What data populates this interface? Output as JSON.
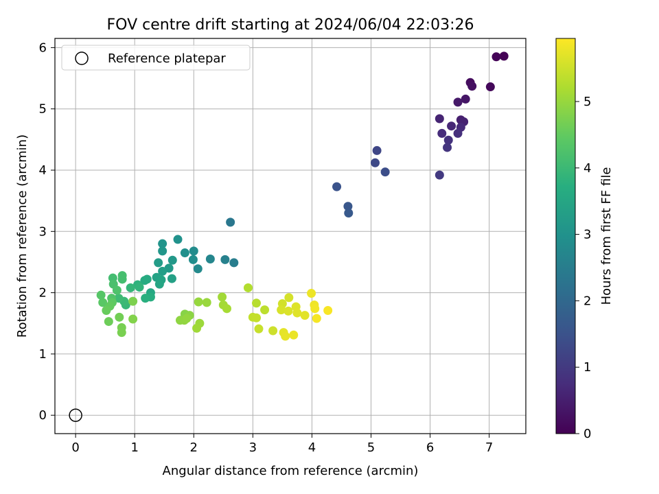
{
  "chart_data": {
    "type": "scatter",
    "title": "FOV centre drift starting at 2024/06/04 22:03:26",
    "xlabel": "Angular distance from reference (arcmin)",
    "ylabel": "Rotation from reference (arcmin)",
    "xlim": [
      -0.35,
      7.62
    ],
    "ylim": [
      -0.3,
      6.15
    ],
    "xticks": [
      "0",
      "1",
      "2",
      "3",
      "4",
      "5",
      "6",
      "7"
    ],
    "yticks": [
      "0",
      "1",
      "2",
      "3",
      "4",
      "5",
      "6"
    ],
    "grid": true,
    "legend": {
      "location": "upper-left",
      "entries": [
        "Reference platepar"
      ]
    },
    "reference_point": {
      "x": 0,
      "y": 0,
      "label": "Reference platepar"
    },
    "colorbar": {
      "label": "Hours from first FF file",
      "colormap": "viridis",
      "range": [
        0,
        5.95
      ],
      "ticks": [
        "0",
        "1",
        "2",
        "3",
        "4",
        "5"
      ]
    },
    "points": [
      {
        "x": 7.25,
        "y": 5.86,
        "h": 0.02
      },
      {
        "x": 7.12,
        "y": 5.85,
        "h": 0.05
      },
      {
        "x": 7.02,
        "y": 5.36,
        "h": 0.12
      },
      {
        "x": 6.68,
        "y": 5.43,
        "h": 0.2
      },
      {
        "x": 6.71,
        "y": 5.37,
        "h": 0.25
      },
      {
        "x": 6.6,
        "y": 5.16,
        "h": 0.35
      },
      {
        "x": 6.47,
        "y": 5.11,
        "h": 0.4
      },
      {
        "x": 6.52,
        "y": 4.82,
        "h": 0.5
      },
      {
        "x": 6.57,
        "y": 4.79,
        "h": 0.55
      },
      {
        "x": 6.16,
        "y": 4.84,
        "h": 0.6
      },
      {
        "x": 6.36,
        "y": 4.72,
        "h": 0.65
      },
      {
        "x": 6.52,
        "y": 4.7,
        "h": 0.7
      },
      {
        "x": 6.2,
        "y": 4.6,
        "h": 0.75
      },
      {
        "x": 6.47,
        "y": 4.6,
        "h": 0.8
      },
      {
        "x": 6.31,
        "y": 4.49,
        "h": 0.85
      },
      {
        "x": 6.29,
        "y": 4.37,
        "h": 0.9
      },
      {
        "x": 6.16,
        "y": 3.92,
        "h": 1.0
      },
      {
        "x": 5.1,
        "y": 4.32,
        "h": 1.25
      },
      {
        "x": 5.07,
        "y": 4.12,
        "h": 1.3
      },
      {
        "x": 5.24,
        "y": 3.97,
        "h": 1.4
      },
      {
        "x": 4.42,
        "y": 3.73,
        "h": 1.5
      },
      {
        "x": 4.61,
        "y": 3.41,
        "h": 1.6
      },
      {
        "x": 4.62,
        "y": 3.3,
        "h": 1.65
      },
      {
        "x": 2.62,
        "y": 3.15,
        "h": 2.35
      },
      {
        "x": 2.68,
        "y": 2.49,
        "h": 2.5
      },
      {
        "x": 2.53,
        "y": 2.54,
        "h": 2.6
      },
      {
        "x": 2.28,
        "y": 2.55,
        "h": 2.7
      },
      {
        "x": 2.07,
        "y": 2.39,
        "h": 2.8
      },
      {
        "x": 2.0,
        "y": 2.68,
        "h": 2.85
      },
      {
        "x": 1.99,
        "y": 2.54,
        "h": 2.9
      },
      {
        "x": 1.85,
        "y": 2.65,
        "h": 2.95
      },
      {
        "x": 1.73,
        "y": 2.87,
        "h": 3.0
      },
      {
        "x": 1.47,
        "y": 2.8,
        "h": 3.05
      },
      {
        "x": 1.47,
        "y": 2.68,
        "h": 3.1
      },
      {
        "x": 1.64,
        "y": 2.53,
        "h": 3.15
      },
      {
        "x": 1.58,
        "y": 2.4,
        "h": 3.2
      },
      {
        "x": 1.4,
        "y": 2.49,
        "h": 3.25
      },
      {
        "x": 1.47,
        "y": 2.35,
        "h": 3.3
      },
      {
        "x": 1.63,
        "y": 2.23,
        "h": 3.35
      },
      {
        "x": 1.37,
        "y": 2.25,
        "h": 3.4
      },
      {
        "x": 1.45,
        "y": 2.21,
        "h": 3.45
      },
      {
        "x": 1.42,
        "y": 2.14,
        "h": 3.5
      },
      {
        "x": 1.27,
        "y": 2.0,
        "h": 3.55
      },
      {
        "x": 1.21,
        "y": 2.22,
        "h": 3.6
      },
      {
        "x": 1.17,
        "y": 2.2,
        "h": 3.65
      },
      {
        "x": 1.27,
        "y": 1.93,
        "h": 3.7
      },
      {
        "x": 1.18,
        "y": 1.91,
        "h": 3.75
      },
      {
        "x": 1.05,
        "y": 2.13,
        "h": 3.8
      },
      {
        "x": 1.08,
        "y": 2.09,
        "h": 3.85
      },
      {
        "x": 0.93,
        "y": 2.08,
        "h": 3.9
      },
      {
        "x": 0.85,
        "y": 1.8,
        "h": 3.95
      },
      {
        "x": 0.82,
        "y": 1.86,
        "h": 4.0
      },
      {
        "x": 0.73,
        "y": 1.91,
        "h": 4.05
      },
      {
        "x": 0.63,
        "y": 2.24,
        "h": 4.1
      },
      {
        "x": 0.79,
        "y": 2.22,
        "h": 4.12
      },
      {
        "x": 0.79,
        "y": 2.28,
        "h": 4.15
      },
      {
        "x": 0.64,
        "y": 2.14,
        "h": 4.2
      },
      {
        "x": 0.7,
        "y": 2.04,
        "h": 4.25
      },
      {
        "x": 0.61,
        "y": 1.91,
        "h": 4.3
      },
      {
        "x": 0.43,
        "y": 1.96,
        "h": 4.35
      },
      {
        "x": 0.46,
        "y": 1.84,
        "h": 4.4
      },
      {
        "x": 0.62,
        "y": 1.84,
        "h": 4.45
      },
      {
        "x": 0.58,
        "y": 1.78,
        "h": 4.5
      },
      {
        "x": 0.52,
        "y": 1.71,
        "h": 4.55
      },
      {
        "x": 0.56,
        "y": 1.53,
        "h": 4.6
      },
      {
        "x": 0.74,
        "y": 1.6,
        "h": 4.65
      },
      {
        "x": 0.78,
        "y": 1.43,
        "h": 4.7
      },
      {
        "x": 0.78,
        "y": 1.35,
        "h": 4.72
      },
      {
        "x": 0.97,
        "y": 1.86,
        "h": 4.75
      },
      {
        "x": 0.97,
        "y": 1.57,
        "h": 4.8
      },
      {
        "x": 1.85,
        "y": 1.65,
        "h": 4.85
      },
      {
        "x": 1.93,
        "y": 1.63,
        "h": 4.9
      },
      {
        "x": 1.77,
        "y": 1.55,
        "h": 4.92
      },
      {
        "x": 1.84,
        "y": 1.55,
        "h": 4.95
      },
      {
        "x": 1.88,
        "y": 1.58,
        "h": 4.97
      },
      {
        "x": 2.08,
        "y": 1.85,
        "h": 5.0
      },
      {
        "x": 2.22,
        "y": 1.84,
        "h": 5.02
      },
      {
        "x": 2.1,
        "y": 1.5,
        "h": 5.05
      },
      {
        "x": 2.05,
        "y": 1.42,
        "h": 5.08
      },
      {
        "x": 2.48,
        "y": 1.93,
        "h": 5.1
      },
      {
        "x": 2.5,
        "y": 1.8,
        "h": 5.12
      },
      {
        "x": 2.56,
        "y": 1.74,
        "h": 5.15
      },
      {
        "x": 2.92,
        "y": 2.08,
        "h": 5.25
      },
      {
        "x": 3.06,
        "y": 1.83,
        "h": 5.3
      },
      {
        "x": 3.2,
        "y": 1.72,
        "h": 5.35
      },
      {
        "x": 3.0,
        "y": 1.6,
        "h": 5.4
      },
      {
        "x": 3.06,
        "y": 1.59,
        "h": 5.42
      },
      {
        "x": 3.1,
        "y": 1.41,
        "h": 5.45
      },
      {
        "x": 3.34,
        "y": 1.38,
        "h": 5.5
      },
      {
        "x": 3.5,
        "y": 1.82,
        "h": 5.55
      },
      {
        "x": 3.61,
        "y": 1.92,
        "h": 5.57
      },
      {
        "x": 3.48,
        "y": 1.72,
        "h": 5.6
      },
      {
        "x": 3.6,
        "y": 1.7,
        "h": 5.62
      },
      {
        "x": 3.73,
        "y": 1.77,
        "h": 5.65
      },
      {
        "x": 3.75,
        "y": 1.67,
        "h": 5.67
      },
      {
        "x": 3.88,
        "y": 1.63,
        "h": 5.7
      },
      {
        "x": 3.52,
        "y": 1.35,
        "h": 5.72
      },
      {
        "x": 3.55,
        "y": 1.29,
        "h": 5.75
      },
      {
        "x": 3.69,
        "y": 1.31,
        "h": 5.77
      },
      {
        "x": 3.99,
        "y": 1.99,
        "h": 5.8
      },
      {
        "x": 4.04,
        "y": 1.8,
        "h": 5.82
      },
      {
        "x": 4.05,
        "y": 1.74,
        "h": 5.85
      },
      {
        "x": 4.08,
        "y": 1.58,
        "h": 5.88
      },
      {
        "x": 4.27,
        "y": 1.71,
        "h": 5.9
      }
    ]
  }
}
